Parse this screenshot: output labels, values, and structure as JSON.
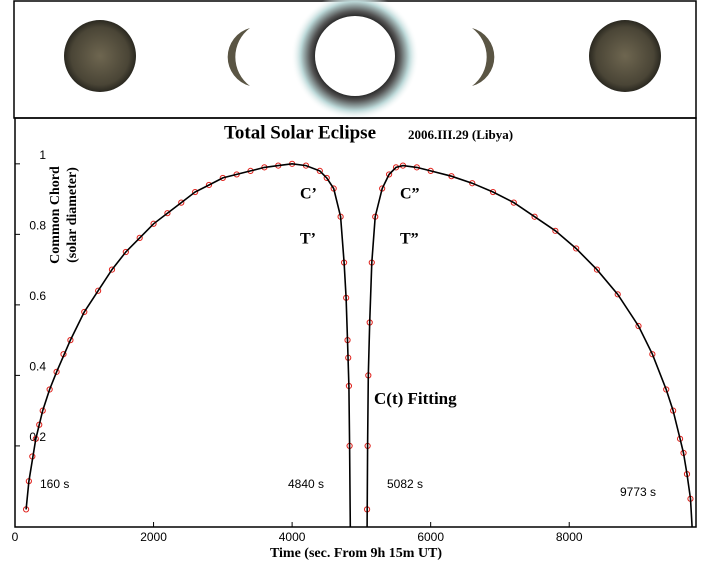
{
  "chart_data": {
    "type": "line",
    "title": "Total Solar Eclipse",
    "subtitle": "2006.III.29 (Libya)",
    "x_label": "Time (sec. From 9h 15m UT)",
    "y_label": [
      "Common Chord",
      "(solar diameter)"
    ],
    "xlim": [
      0,
      9830
    ],
    "ylim": [
      -0.03,
      1.13
    ],
    "xticks": [
      0,
      2000,
      4000,
      6000,
      8000
    ],
    "yticks": [
      0.2,
      0.4,
      0.6,
      0.8,
      1
    ],
    "annotations": [
      "C’",
      "C”",
      "T’",
      "T”",
      "C(t)  Fitting",
      "160 s",
      "4840 s",
      "5082 s",
      "9773 s"
    ],
    "series": [
      {
        "kind": "markers",
        "color": "#e0201a",
        "x": [
          160,
          200,
          250,
          300,
          350,
          400,
          500,
          600,
          700,
          800,
          1000,
          1200,
          1400,
          1600,
          1800,
          2000,
          2200,
          2400,
          2600,
          2800,
          3000,
          3200,
          3400,
          3600,
          3800,
          4000,
          4200,
          4400,
          4500,
          4600,
          4700,
          4750,
          4780,
          4800,
          4810,
          4820,
          4830,
          5082,
          5090,
          5100,
          5120,
          5150,
          5200,
          5300,
          5400,
          5500,
          5600,
          5800,
          6000,
          6300,
          6600,
          6900,
          7200,
          7500,
          7800,
          8100,
          8400,
          8700,
          9000,
          9200,
          9400,
          9500,
          9600,
          9650,
          9700,
          9750
        ],
        "values": [
          0.02,
          0.1,
          0.17,
          0.22,
          0.26,
          0.3,
          0.36,
          0.41,
          0.46,
          0.5,
          0.58,
          0.64,
          0.7,
          0.75,
          0.79,
          0.83,
          0.86,
          0.89,
          0.92,
          0.94,
          0.96,
          0.97,
          0.98,
          0.99,
          0.995,
          1.0,
          0.995,
          0.98,
          0.96,
          0.93,
          0.85,
          0.72,
          0.62,
          0.5,
          0.45,
          0.37,
          0.2,
          0.02,
          0.2,
          0.4,
          0.55,
          0.72,
          0.85,
          0.93,
          0.97,
          0.99,
          0.995,
          0.99,
          0.98,
          0.965,
          0.945,
          0.92,
          0.89,
          0.85,
          0.81,
          0.76,
          0.7,
          0.63,
          0.54,
          0.46,
          0.36,
          0.3,
          0.22,
          0.18,
          0.12,
          0.05
        ]
      },
      {
        "kind": "line",
        "color": "#000000",
        "x": [
          160,
          200,
          300,
          400,
          500,
          600,
          800,
          1000,
          1200,
          1400,
          1600,
          1800,
          2000,
          2200,
          2400,
          2600,
          2800,
          3000,
          3200,
          3400,
          3600,
          3800,
          4000,
          4200,
          4400,
          4500,
          4600,
          4700,
          4750,
          4780,
          4800,
          4820,
          4830,
          4840
        ],
        "values": [
          0.02,
          0.1,
          0.22,
          0.3,
          0.36,
          0.41,
          0.5,
          0.58,
          0.64,
          0.7,
          0.75,
          0.79,
          0.83,
          0.86,
          0.89,
          0.92,
          0.94,
          0.96,
          0.97,
          0.98,
          0.99,
          0.995,
          1.0,
          0.995,
          0.98,
          0.96,
          0.93,
          0.85,
          0.72,
          0.62,
          0.5,
          0.37,
          0.2,
          -0.03
        ]
      },
      {
        "kind": "line",
        "color": "#000000",
        "x": [
          5082,
          5090,
          5100,
          5120,
          5150,
          5200,
          5300,
          5400,
          5500,
          5600,
          5800,
          6000,
          6300,
          6600,
          6900,
          7200,
          7500,
          7800,
          8100,
          8400,
          8700,
          9000,
          9200,
          9400,
          9500,
          9600,
          9650,
          9700,
          9750,
          9773
        ],
        "values": [
          -0.03,
          0.2,
          0.4,
          0.55,
          0.72,
          0.85,
          0.93,
          0.97,
          0.99,
          0.995,
          0.99,
          0.98,
          0.965,
          0.945,
          0.92,
          0.89,
          0.85,
          0.81,
          0.76,
          0.7,
          0.63,
          0.54,
          0.46,
          0.36,
          0.3,
          0.22,
          0.18,
          0.12,
          0.05,
          -0.03
        ]
      }
    ]
  }
}
